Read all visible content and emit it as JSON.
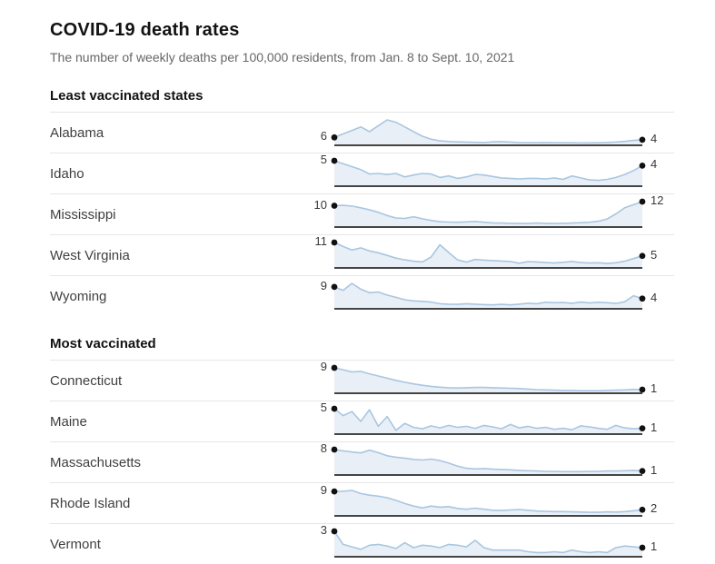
{
  "header": {
    "title": "COVID-19 death rates",
    "subtitle": "The number of weekly deaths per 100,000 residents, from Jan. 8 to Sept. 10, 2021"
  },
  "colors": {
    "line": "#a9c6e1",
    "fill": "#e9eff6",
    "baseline": "#444444",
    "dot": "#111111",
    "separator": "#e6e6e6",
    "title_text": "#121212",
    "subtitle_text": "#676767"
  },
  "chart_data": {
    "type": "line",
    "title": "COVID-19 death rates",
    "subtitle": "The number of weekly deaths per 100,000 residents, from Jan. 8 to Sept. 10, 2021",
    "x_range": [
      "Jan. 8, 2021",
      "Sept. 10, 2021"
    ],
    "ylabel": "Weekly deaths per 100,000 residents",
    "layout": "small-multiples, one sparkline per state, per-chart y scale from 0 to series max, start and end values labeled with dots",
    "groups": [
      {
        "label": "Least vaccinated states",
        "series": [
          {
            "name": "Alabama",
            "start": 6,
            "end": 4,
            "values": [
              6,
              9,
              12,
              15,
              11,
              16,
              21,
              19,
              15,
              11,
              7,
              4.5,
              3,
              2.5,
              2.2,
              2,
              1.8,
              1.6,
              2.2,
              2.4,
              2,
              1.6,
              1.5,
              1.5,
              1.6,
              1.5,
              1.4,
              1.4,
              1.3,
              1.3,
              1.4,
              1.6,
              2,
              2.6,
              3.4,
              4
            ]
          },
          {
            "name": "Idaho",
            "start": 5,
            "end": 4,
            "values": [
              5,
              4.4,
              3.8,
              3.2,
              2.3,
              2.4,
              2.2,
              2.4,
              1.7,
              2.1,
              2.4,
              2.3,
              1.6,
              1.9,
              1.4,
              1.7,
              2.2,
              2.1,
              1.8,
              1.5,
              1.4,
              1.3,
              1.4,
              1.4,
              1.3,
              1.5,
              1.2,
              1.9,
              1.5,
              1.1,
              1,
              1.2,
              1.6,
              2.2,
              3,
              4
            ]
          },
          {
            "name": "Mississippi",
            "start": 10,
            "end": 12,
            "values": [
              10,
              10.2,
              9.8,
              9,
              8,
              6.8,
              5.2,
              4,
              3.8,
              4.6,
              3.6,
              2.8,
              2.2,
              2,
              1.9,
              2.1,
              2.3,
              1.9,
              1.6,
              1.5,
              1.4,
              1.4,
              1.3,
              1.5,
              1.4,
              1.3,
              1.4,
              1.5,
              1.7,
              1.9,
              2.4,
              3.5,
              6,
              9,
              10.5,
              12
            ]
          },
          {
            "name": "West Virginia",
            "start": 11,
            "end": 5,
            "values": [
              11,
              9.2,
              7.6,
              8.6,
              7.2,
              6.4,
              5.2,
              4,
              3.2,
              2.6,
              2.3,
              4.5,
              10,
              6.5,
              3.2,
              2.2,
              3.4,
              3.1,
              2.9,
              2.7,
              2.5,
              1.7,
              2.4,
              2.3,
              2,
              1.8,
              2.1,
              2.5,
              2,
              1.8,
              1.9,
              1.6,
              1.9,
              2.6,
              3.8,
              5
            ]
          },
          {
            "name": "Wyoming",
            "start": 9,
            "end": 4,
            "values": [
              9,
              7.5,
              10.5,
              8,
              6.5,
              6.8,
              5.5,
              4.5,
              3.5,
              3,
              2.8,
              2.5,
              1.8,
              1.6,
              1.5,
              1.8,
              1.6,
              1.4,
              1.3,
              1.5,
              1.3,
              1.6,
              2,
              1.8,
              2.4,
              2.2,
              2.3,
              2,
              2.5,
              2.1,
              2.4,
              2.2,
              1.9,
              2.6,
              5.2,
              4
            ]
          }
        ]
      },
      {
        "label": "Most vaccinated",
        "series": [
          {
            "name": "Connecticut",
            "start": 9,
            "end": 1,
            "values": [
              9,
              8.3,
              7.5,
              7.7,
              6.8,
              6,
              5.2,
              4.4,
              3.7,
              3.1,
              2.6,
              2.2,
              1.9,
              1.7,
              1.6,
              1.7,
              1.8,
              1.8,
              1.7,
              1.6,
              1.5,
              1.4,
              1.2,
              1,
              0.9,
              0.8,
              0.7,
              0.7,
              0.6,
              0.6,
              0.6,
              0.7,
              0.8,
              0.9,
              1.1,
              1
            ]
          },
          {
            "name": "Maine",
            "start": 5,
            "end": 1,
            "values": [
              5,
              3.6,
              4.4,
              2.4,
              4.8,
              1.4,
              3.4,
              0.6,
              2,
              1.2,
              0.9,
              1.5,
              1.1,
              1.6,
              1.2,
              1.4,
              1,
              1.6,
              1.3,
              0.9,
              1.8,
              1.1,
              1.4,
              1,
              1.2,
              0.8,
              1,
              0.7,
              1.5,
              1.3,
              1,
              0.8,
              1.6,
              1.1,
              0.9,
              1
            ]
          },
          {
            "name": "Massachusetts",
            "start": 8,
            "end": 1,
            "values": [
              8,
              7.6,
              7.2,
              6.9,
              7.8,
              7,
              6,
              5.5,
              5.2,
              4.8,
              4.6,
              4.9,
              4.4,
              3.6,
              2.6,
              1.9,
              1.7,
              1.8,
              1.6,
              1.5,
              1.4,
              1.2,
              1.1,
              1,
              0.9,
              0.9,
              0.8,
              0.8,
              0.8,
              0.9,
              0.9,
              1,
              1,
              1.1,
              1.2,
              1
            ]
          },
          {
            "name": "Rhode Island",
            "start": 9,
            "end": 2,
            "values": [
              9,
              9.1,
              9.4,
              8.2,
              7.6,
              7.2,
              6.6,
              5.6,
              4.4,
              3.4,
              2.7,
              3.4,
              3,
              3.2,
              2.5,
              2.2,
              2.6,
              2.2,
              1.8,
              1.7,
              1.9,
              2.1,
              1.8,
              1.5,
              1.4,
              1.3,
              1.3,
              1.2,
              1.1,
              1,
              1,
              1.2,
              1.1,
              1.3,
              1.6,
              2
            ]
          },
          {
            "name": "Vermont",
            "start": 3,
            "end": 1,
            "values": [
              3,
              1.4,
              1.1,
              0.8,
              1.3,
              1.4,
              1.2,
              0.9,
              1.6,
              1,
              1.3,
              1.2,
              1,
              1.4,
              1.3,
              1.1,
              1.9,
              1,
              0.7,
              0.7,
              0.7,
              0.7,
              0.5,
              0.4,
              0.4,
              0.5,
              0.4,
              0.7,
              0.5,
              0.4,
              0.5,
              0.4,
              1,
              1.2,
              1.1,
              1
            ]
          }
        ]
      }
    ]
  }
}
